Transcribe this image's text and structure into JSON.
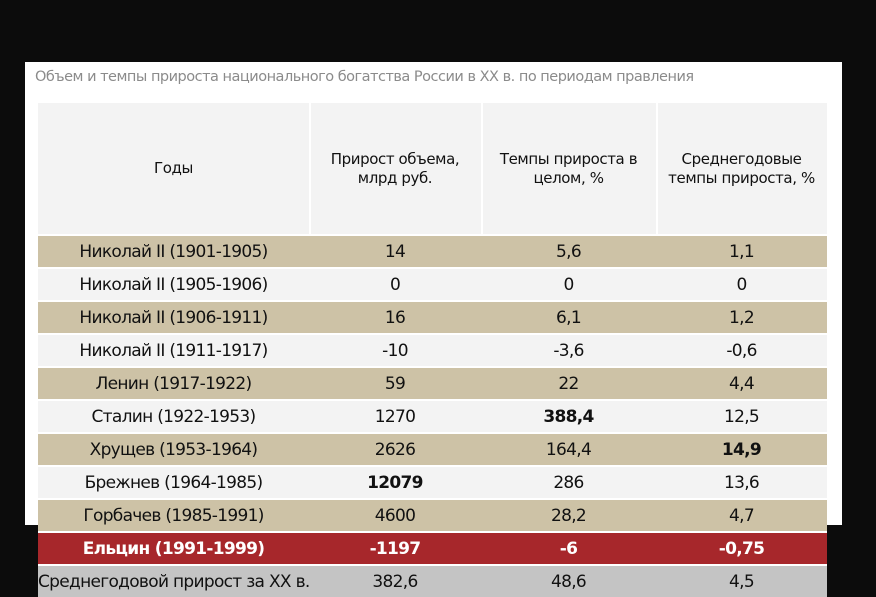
{
  "title": "Объем и темпы прироста национального богатства России в XX в. по периодам правления",
  "headers": [
    "Годы",
    "Прирост объема, млрд руб.",
    "Темпы прироста в целом, %",
    "Среднегодовые темпы прироста, %"
  ],
  "rows": [
    {
      "period": "Николай II (1901-1905)",
      "volume": "14",
      "growth_total": "5,6",
      "growth_annual": "1,1"
    },
    {
      "period": "Николай II (1905-1906)",
      "volume": "0",
      "growth_total": "0",
      "growth_annual": "0"
    },
    {
      "period": "Николай II (1906-1911)",
      "volume": "16",
      "growth_total": "6,1",
      "growth_annual": "1,2"
    },
    {
      "period": "Николай II (1911-1917)",
      "volume": "-10",
      "growth_total": "-3,6",
      "growth_annual": "-0,6"
    },
    {
      "period": "Ленин (1917-1922)",
      "volume": "59",
      "growth_total": "22",
      "growth_annual": "4,4"
    },
    {
      "period": "Сталин (1922-1953)",
      "volume": "1270",
      "growth_total": "388,4",
      "growth_annual": "12,5"
    },
    {
      "period": "Хрущев (1953-1964)",
      "volume": "2626",
      "growth_total": "164,4",
      "growth_annual": "14,9"
    },
    {
      "period": "Брежнев (1964-1985)",
      "volume": "12079",
      "growth_total": "286",
      "growth_annual": "13,6"
    },
    {
      "period": "Горбачев (1985-1991)",
      "volume": "4600",
      "growth_total": "28,2",
      "growth_annual": "4,7"
    },
    {
      "period": "Ельцин (1991-1999)",
      "volume": "-1197",
      "growth_total": "-6",
      "growth_annual": "-0,75"
    }
  ],
  "summary": {
    "period": "Среднегодовой прирост за XX в.",
    "volume": "382,6",
    "growth_total": "48,6",
    "growth_annual": "4,5"
  },
  "colors": {
    "tan_row": "#cdc2a6",
    "light_row": "#f3f3f3",
    "highlight_row": "#a7272b",
    "summary_row": "#c4c4c4"
  }
}
